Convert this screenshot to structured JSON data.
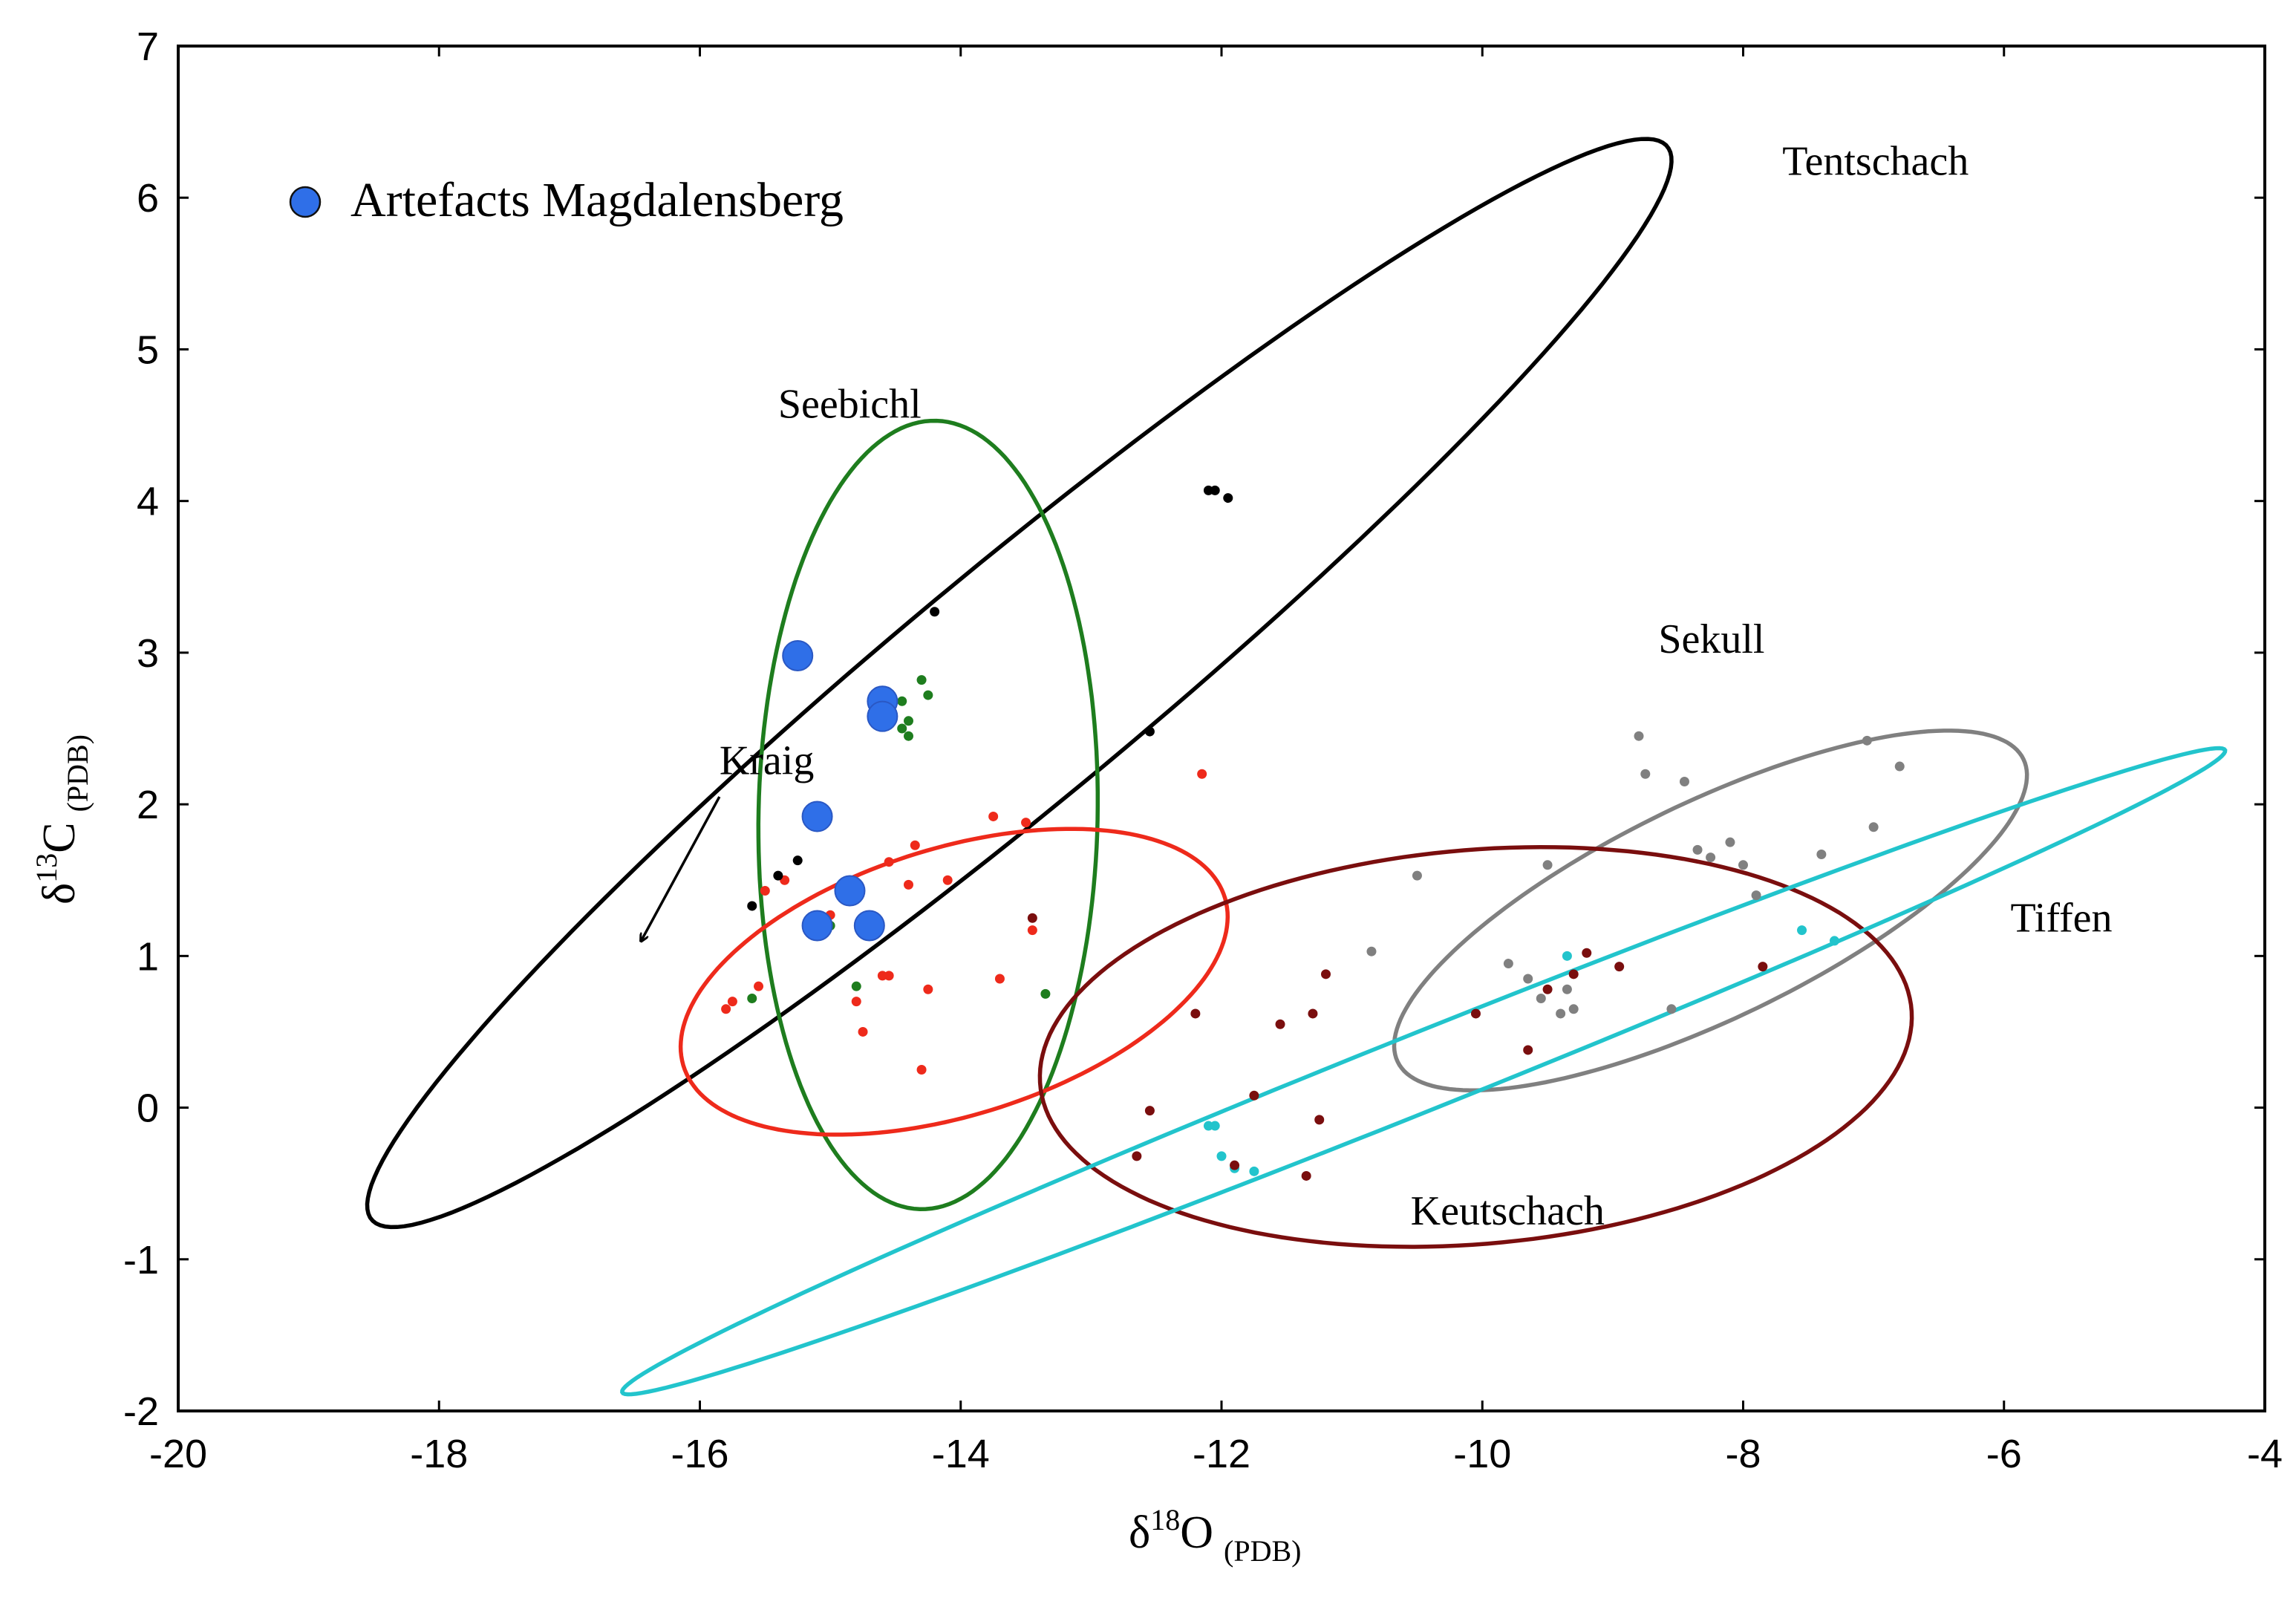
{
  "chart_data": {
    "type": "scatter",
    "title": "",
    "xlabel": {
      "main": "δ",
      "sup": "18",
      "element": "O",
      "sub": "(PDB)"
    },
    "ylabel": {
      "main": "δ",
      "sup": "13",
      "element": "C",
      "sub": "(PDB)"
    },
    "xlim": [
      -20,
      -4
    ],
    "ylim": [
      -2,
      7
    ],
    "xticks": [
      -20,
      -18,
      -16,
      -14,
      -12,
      -10,
      -8,
      -6,
      -4
    ],
    "yticks": [
      -2,
      -1,
      0,
      1,
      2,
      3,
      4,
      5,
      6,
      7
    ],
    "grid": false,
    "legend": {
      "position": "top-left",
      "label": "Artefacts Magdalensberg",
      "color": "#2f6fe8"
    },
    "ellipses": [
      {
        "name": "Tentschach",
        "color": "#000000",
        "cx": -13.55,
        "cy": 2.8,
        "rx": 6.1,
        "ry": 0.82,
        "rotation_data_deg": 35.3
      },
      {
        "name": "Seebichl",
        "color": "#1e7d1e",
        "cx": -14.25,
        "cy": 1.93,
        "rx": 2.6,
        "ry": 1.3,
        "rotation_data_deg": 88.6
      },
      {
        "name": "Kraig",
        "color": "#ee2a1b",
        "cx": -14.05,
        "cy": 0.83,
        "rx": 2.15,
        "ry": 0.89,
        "rotation_data_deg": 14
      },
      {
        "name": "Sekull",
        "color": "#808080",
        "cx": -8.25,
        "cy": 1.3,
        "rx": 2.6,
        "ry": 0.73,
        "rotation_data_deg": 22
      },
      {
        "name": "Keutschach",
        "color": "#7a0e0e",
        "cx": -10.05,
        "cy": 0.4,
        "rx": 3.35,
        "ry": 1.3,
        "rotation_data_deg": 4
      },
      {
        "name": "Tiffen",
        "color": "#22c4cc",
        "cx": -10.45,
        "cy": 0.24,
        "rx": 6.5,
        "ry": 0.26,
        "rotation_data_deg": 19
      }
    ],
    "labels": [
      {
        "text": "Tentschach",
        "x": -7.7,
        "y": 6.15
      },
      {
        "text": "Seebichl",
        "x": -15.4,
        "y": 4.55
      },
      {
        "text": "Kraig",
        "x": -15.85,
        "y": 2.2
      },
      {
        "text": "Sekull",
        "x": -8.65,
        "y": 3.0
      },
      {
        "text": "Keutschach",
        "x": -10.55,
        "y": -0.77
      },
      {
        "text": "Tiffen",
        "x": -5.95,
        "y": 1.16
      }
    ],
    "arrow": {
      "from": [
        -15.85,
        2.05
      ],
      "to": [
        -16.45,
        1.1
      ]
    },
    "series": [
      {
        "name": "Artefacts Magdalensberg",
        "color": "#2f6fe8",
        "marker": "large",
        "x": [
          -15.25,
          -14.6,
          -14.6,
          -15.1,
          -14.85,
          -15.1,
          -14.7
        ],
        "y": [
          2.98,
          2.68,
          2.58,
          1.92,
          1.43,
          1.2,
          1.2
        ]
      },
      {
        "name": "Tentschach",
        "color": "#000000",
        "x": [
          -12.1,
          -12.05,
          -11.95,
          -14.2,
          -12.55,
          -15.25,
          -15.4,
          -15.6
        ],
        "y": [
          4.07,
          4.07,
          4.02,
          3.27,
          2.48,
          1.63,
          1.53,
          1.33
        ]
      },
      {
        "name": "Seebichl",
        "color": "#1e7d1e",
        "x": [
          -14.3,
          -14.55,
          -14.45,
          -14.4,
          -14.25,
          -14.4,
          -14.45,
          -15.0,
          -14.8,
          -15.6,
          -13.35
        ],
        "y": [
          2.82,
          2.72,
          2.68,
          2.55,
          2.72,
          2.45,
          2.5,
          1.2,
          0.8,
          0.72,
          0.75
        ]
      },
      {
        "name": "Kraig",
        "color": "#ee2a1b",
        "x": [
          -12.15,
          -13.75,
          -13.5,
          -14.35,
          -14.55,
          -14.4,
          -14.1,
          -15.0,
          -15.35,
          -15.5,
          -15.55,
          -15.75,
          -15.8,
          -14.6,
          -14.55,
          -14.25,
          -14.8,
          -14.75,
          -13.45,
          -13.7,
          -14.3
        ],
        "y": [
          2.2,
          1.92,
          1.88,
          1.73,
          1.62,
          1.47,
          1.5,
          1.27,
          1.5,
          1.43,
          0.8,
          0.7,
          0.65,
          0.87,
          0.87,
          0.78,
          0.7,
          0.5,
          1.17,
          0.85,
          0.25
        ]
      },
      {
        "name": "Keutschach",
        "color": "#7a0e0e",
        "x": [
          -13.45,
          -11.2,
          -12.2,
          -11.3,
          -11.55,
          -11.75,
          -12.55,
          -11.25,
          -12.65,
          -11.9,
          -11.35,
          -10.05,
          -9.65,
          -9.5,
          -9.3,
          -9.2,
          -8.95,
          -7.85
        ],
        "y": [
          1.25,
          0.88,
          0.62,
          0.62,
          0.55,
          0.08,
          -0.02,
          -0.08,
          -0.32,
          -0.38,
          -0.45,
          0.62,
          0.38,
          0.78,
          0.88,
          1.02,
          0.93,
          0.93
        ]
      },
      {
        "name": "Sekull",
        "color": "#808080",
        "x": [
          -8.8,
          -8.75,
          -8.45,
          -7.05,
          -6.8,
          -7.4,
          -7.0,
          -10.5,
          -9.5,
          -8.35,
          -8.25,
          -8.1,
          -8.0,
          -7.9,
          -10.85,
          -9.8,
          -9.65,
          -9.55,
          -9.35,
          -9.4,
          -9.3,
          -8.55
        ],
        "y": [
          2.45,
          2.2,
          2.15,
          2.42,
          2.25,
          1.67,
          1.85,
          1.53,
          1.6,
          1.7,
          1.65,
          1.75,
          1.6,
          1.4,
          1.03,
          0.95,
          0.85,
          0.72,
          0.78,
          0.62,
          0.65,
          0.65
        ]
      },
      {
        "name": "Tiffen",
        "color": "#22c4cc",
        "x": [
          -7.55,
          -7.3,
          -9.35,
          -12.1,
          -12.05,
          -12.0,
          -11.9,
          -11.75
        ],
        "y": [
          1.17,
          1.1,
          1.0,
          -0.12,
          -0.12,
          -0.32,
          -0.4,
          -0.42
        ]
      }
    ]
  }
}
